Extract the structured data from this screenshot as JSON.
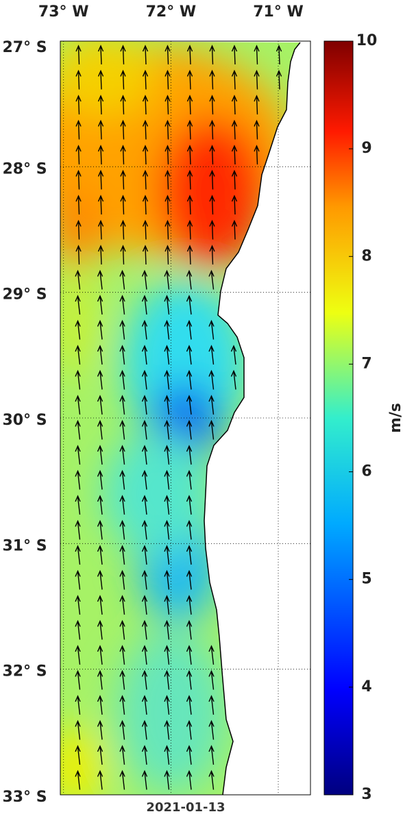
{
  "map": {
    "xlim": [
      -73.03,
      -70.7
    ],
    "ylim": [
      -33,
      -27
    ],
    "xticks": [
      {
        "value": -73,
        "label": "73° W"
      },
      {
        "value": -72,
        "label": "72° W"
      },
      {
        "value": -71,
        "label": "71° W"
      }
    ],
    "yticks": [
      {
        "value": -27,
        "label": "27° S"
      },
      {
        "value": -28,
        "label": "28° S"
      },
      {
        "value": -29,
        "label": "29° S"
      },
      {
        "value": -30,
        "label": "30° S"
      },
      {
        "value": -31,
        "label": "31° S"
      },
      {
        "value": -32,
        "label": "32° S"
      },
      {
        "value": -33,
        "label": "33° S"
      }
    ],
    "grid": true,
    "date": "2021-01-13"
  },
  "colorbar": {
    "label": "m/s",
    "lim": [
      3,
      10
    ],
    "ticks": [
      3,
      4,
      5,
      6,
      7,
      8,
      9,
      10
    ]
  }
}
